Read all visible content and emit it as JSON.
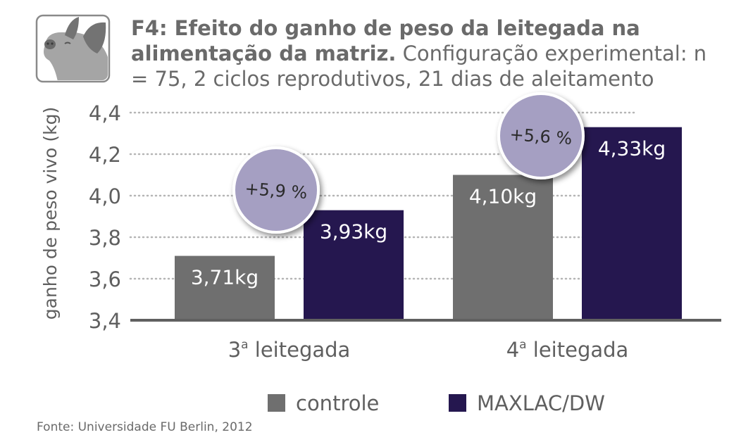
{
  "header": {
    "title_bold": "F4: Efeito do ganho de peso da leitegada na alimenta­ção da matriz.",
    "title_rest": "Configuração experimental: n = 75, 2 ciclos reprodutivos, 21 dias de aleitamento"
  },
  "icon": "pig-icon",
  "source": "Fonte: Universidade FU Berlin, 2012",
  "colors": {
    "controle": "#6f6f6f",
    "maxlac": "#25174f",
    "bubble": "#a59fc2",
    "grid": "#b5b5b5",
    "axis": "#606060",
    "text": "#5f5f5f"
  },
  "chart_data": {
    "type": "bar",
    "title": "F4: Efeito do ganho de peso da leitegada na alimentação da matriz.",
    "ylabel": "ganho de peso vivo (kg)",
    "xlabel": "",
    "ylim": [
      3.4,
      4.4
    ],
    "yticks": [
      3.4,
      3.6,
      3.8,
      4.0,
      4.2,
      4.4
    ],
    "ytick_labels": [
      "3,4",
      "3,6",
      "3,8",
      "4,0",
      "4,2",
      "4,4"
    ],
    "grid": true,
    "categories": [
      "3ª leitegada",
      "4ª leitegada"
    ],
    "category_labels": [
      {
        "num": "3",
        "sup": "a",
        "text": " leitegada"
      },
      {
        "num": "4",
        "sup": "a",
        "text": " leitegada"
      }
    ],
    "series": [
      {
        "name": "controle",
        "values": [
          3.71,
          4.1
        ],
        "labels": [
          "3,71kg",
          "4,10kg"
        ]
      },
      {
        "name": "MAXLAC/DW",
        "values": [
          3.93,
          4.33
        ],
        "labels": [
          "3,93kg",
          "4,33kg"
        ]
      }
    ],
    "annotations": [
      "+5,9 %",
      "+5,6 %"
    ],
    "legend": [
      "controle",
      "MAXLAC/DW"
    ],
    "legend_position": "bottom-center"
  }
}
